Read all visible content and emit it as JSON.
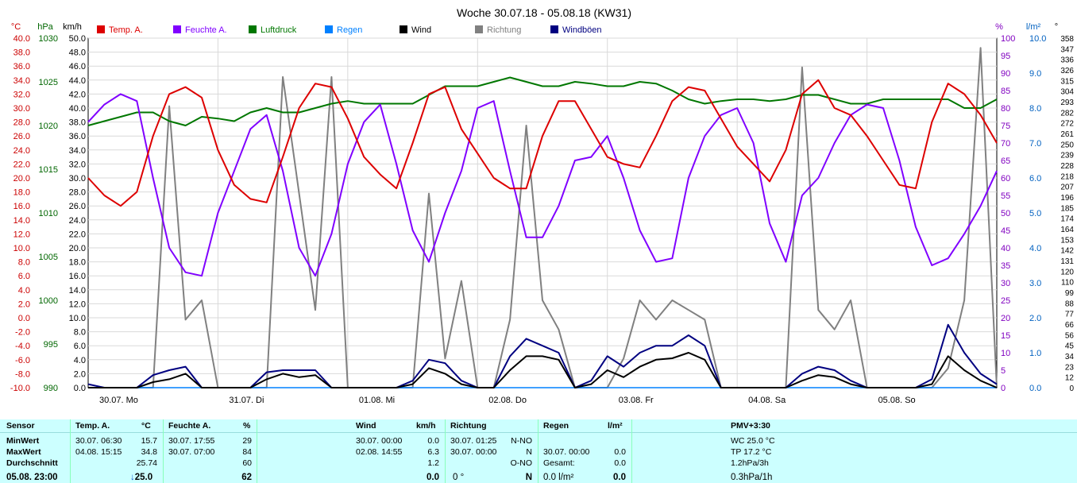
{
  "chart_data": {
    "type": "line",
    "title": "Woche 30.07.18 - 05.08.18 (KW31)",
    "legend": [
      {
        "name": "Temp. A.",
        "color": "#dd0000"
      },
      {
        "name": "Feuchte A.",
        "color": "#8000ff"
      },
      {
        "name": "Luftdruck",
        "color": "#007700"
      },
      {
        "name": "Regen",
        "color": "#0080ff"
      },
      {
        "name": "Wind",
        "color": "#000000"
      },
      {
        "name": "Richtung",
        "color": "#808080"
      },
      {
        "name": "Windböen",
        "color": "#000080"
      }
    ],
    "axes": {
      "temp": {
        "unit": "°C",
        "min": -10,
        "max": 40,
        "step": 2,
        "color": "#cc0000"
      },
      "pressure": {
        "unit": "hPa",
        "min": 990,
        "max": 1030,
        "step": 5,
        "color": "#006600"
      },
      "wind": {
        "unit": "km/h",
        "min": 0,
        "max": 50,
        "step": 2,
        "color": "#000000"
      },
      "humidity": {
        "unit": "%",
        "min": 0,
        "max": 100,
        "step": 5,
        "color": "#8000c0"
      },
      "rain": {
        "unit": "l/m²",
        "min": 0,
        "max": 10,
        "step": 1,
        "color": "#0060c0"
      },
      "direction": {
        "unit": "°",
        "ticks": [
          "0",
          "12",
          "23",
          "34",
          "45",
          "56",
          "66",
          "77",
          "88",
          "99",
          "110",
          "120",
          "131",
          "142",
          "153",
          "164",
          "174",
          "185",
          "196",
          "207",
          "218",
          "228",
          "239",
          "250",
          "261",
          "272",
          "282",
          "293",
          "304",
          "315",
          "326",
          "336",
          "347",
          "358"
        ],
        "color": "#000000"
      }
    },
    "x": {
      "unit": "hours since 30.07. 00:00",
      "min": 0,
      "max": 168,
      "day_labels": [
        "30.07.  Mo",
        "31.07.  Di",
        "01.08.  Mi",
        "02.08.  Do",
        "03.08.  Fr",
        "04.08.  Sa",
        "05.08.  So"
      ]
    },
    "series": [
      {
        "name": "Temp. A.",
        "axis": "temp",
        "x": [
          0,
          3,
          6,
          9,
          12,
          15,
          18,
          21,
          24,
          27,
          30,
          33,
          36,
          39,
          42,
          45,
          48,
          51,
          54,
          57,
          60,
          63,
          66,
          69,
          72,
          75,
          78,
          81,
          84,
          87,
          90,
          93,
          96,
          99,
          102,
          105,
          108,
          111,
          114,
          117,
          120,
          123,
          126,
          129,
          132,
          135,
          138,
          141,
          144,
          147,
          150,
          153,
          156,
          159,
          162,
          165,
          168
        ],
        "values": [
          20,
          17.5,
          16,
          18,
          26,
          32,
          33,
          31.5,
          24,
          19,
          17,
          16.5,
          23,
          30,
          33.5,
          33,
          28.5,
          23,
          20.5,
          18.5,
          25,
          32,
          33,
          27,
          23.5,
          20,
          18.5,
          18.5,
          26,
          31,
          31,
          27,
          23,
          22,
          21.5,
          26,
          31,
          33,
          32.5,
          28.5,
          24.5,
          22,
          19.5,
          24,
          32,
          34,
          30,
          29,
          26,
          22.5,
          19,
          18.5,
          28,
          33.5,
          32,
          29,
          25
        ]
      },
      {
        "name": "Feuchte A.",
        "axis": "humidity",
        "x": [
          0,
          3,
          6,
          9,
          12,
          15,
          18,
          21,
          24,
          27,
          30,
          33,
          36,
          39,
          42,
          45,
          48,
          51,
          54,
          57,
          60,
          63,
          66,
          69,
          72,
          75,
          78,
          81,
          84,
          87,
          90,
          93,
          96,
          99,
          102,
          105,
          108,
          111,
          114,
          117,
          120,
          123,
          126,
          129,
          132,
          135,
          138,
          141,
          144,
          147,
          150,
          153,
          156,
          159,
          162,
          165,
          168
        ],
        "values": [
          76,
          81,
          84,
          82,
          60,
          40,
          33,
          32,
          50,
          62,
          74,
          78,
          62,
          40,
          32,
          44,
          64,
          76,
          81,
          64,
          45,
          36,
          50,
          62,
          80,
          82,
          62,
          43,
          43,
          52,
          65,
          66,
          72,
          60,
          45,
          36,
          37,
          60,
          72,
          78,
          80,
          70,
          47,
          36,
          55,
          60,
          70,
          78,
          81,
          80,
          65,
          46,
          35,
          37,
          44,
          52,
          62
        ]
      },
      {
        "name": "Luftdruck",
        "axis": "pressure",
        "x": [
          0,
          3,
          6,
          9,
          12,
          15,
          18,
          21,
          24,
          27,
          30,
          33,
          36,
          39,
          42,
          45,
          48,
          51,
          54,
          57,
          60,
          63,
          66,
          69,
          72,
          75,
          78,
          81,
          84,
          87,
          90,
          93,
          96,
          99,
          102,
          105,
          108,
          111,
          114,
          117,
          120,
          123,
          126,
          129,
          132,
          135,
          138,
          141,
          144,
          147,
          150,
          153,
          156,
          159,
          162,
          165,
          168
        ],
        "values": [
          1020,
          1020.5,
          1021,
          1021.5,
          1021.5,
          1020.5,
          1020,
          1021,
          1020.8,
          1020.5,
          1021.5,
          1022,
          1021.5,
          1021.5,
          1022,
          1022.5,
          1022.8,
          1022.5,
          1022.5,
          1022.5,
          1022.5,
          1023.5,
          1024.5,
          1024.5,
          1024.5,
          1025,
          1025.5,
          1025,
          1024.5,
          1024.5,
          1025,
          1024.8,
          1024.5,
          1024.5,
          1025,
          1024.8,
          1024,
          1023,
          1022.5,
          1022.8,
          1023,
          1023,
          1022.8,
          1023,
          1023.5,
          1023.5,
          1023,
          1022.5,
          1022.5,
          1023,
          1023,
          1023,
          1023,
          1023,
          1022,
          1022,
          1023
        ]
      },
      {
        "name": "Wind",
        "axis": "wind",
        "x": [
          0,
          3,
          6,
          9,
          12,
          15,
          18,
          21,
          24,
          27,
          30,
          33,
          36,
          39,
          42,
          45,
          48,
          51,
          54,
          57,
          60,
          63,
          66,
          69,
          72,
          75,
          78,
          81,
          84,
          87,
          90,
          93,
          96,
          99,
          102,
          105,
          108,
          111,
          114,
          117,
          120,
          123,
          126,
          129,
          132,
          135,
          138,
          141,
          144,
          147,
          150,
          153,
          156,
          159,
          162,
          165,
          168
        ],
        "values": [
          0,
          0,
          0,
          0,
          0.8,
          1.2,
          2,
          0,
          0,
          0,
          0,
          1.2,
          2,
          1.5,
          1.8,
          0,
          0,
          0,
          0,
          0,
          0.5,
          2.8,
          2,
          0.5,
          0,
          0,
          2.5,
          4.5,
          4.5,
          4,
          0,
          0.5,
          2.5,
          1.5,
          3,
          4,
          4.2,
          5,
          4,
          0,
          0,
          0,
          0,
          0,
          1,
          1.8,
          1.5,
          0.5,
          0,
          0,
          0,
          0,
          0.5,
          4.5,
          2.5,
          1,
          0
        ]
      },
      {
        "name": "Windböen",
        "axis": "wind",
        "x": [
          0,
          3,
          6,
          9,
          12,
          15,
          18,
          21,
          24,
          27,
          30,
          33,
          36,
          39,
          42,
          45,
          48,
          51,
          54,
          57,
          60,
          63,
          66,
          69,
          72,
          75,
          78,
          81,
          84,
          87,
          90,
          93,
          96,
          99,
          102,
          105,
          108,
          111,
          114,
          117,
          120,
          123,
          126,
          129,
          132,
          135,
          138,
          141,
          144,
          147,
          150,
          153,
          156,
          159,
          162,
          165,
          168
        ],
        "values": [
          0.5,
          0,
          0,
          0,
          1.8,
          2.5,
          3,
          0,
          0,
          0,
          0,
          2.2,
          2.5,
          2.5,
          2.5,
          0,
          0,
          0,
          0,
          0,
          1,
          4,
          3.5,
          1,
          0,
          0,
          4.5,
          7,
          6,
          5,
          0,
          1,
          4.5,
          3,
          5,
          6,
          6,
          7.5,
          6,
          0,
          0,
          0,
          0,
          0,
          2,
          3,
          2.5,
          1,
          0,
          0,
          0,
          0,
          1.2,
          9,
          5,
          2,
          0.5
        ]
      },
      {
        "name": "Richtung",
        "axis": "direction",
        "x": [
          0,
          3,
          6,
          9,
          12,
          15,
          18,
          21,
          24,
          27,
          30,
          33,
          36,
          39,
          42,
          45,
          48,
          51,
          54,
          57,
          60,
          63,
          66,
          69,
          72,
          75,
          78,
          81,
          84,
          87,
          90,
          93,
          96,
          99,
          102,
          105,
          108,
          111,
          114,
          117,
          120,
          123,
          126,
          129,
          132,
          135,
          138,
          141,
          144,
          147,
          150,
          153,
          156,
          159,
          162,
          165,
          168
        ],
        "values": [
          0,
          0,
          0,
          0,
          0,
          290,
          70,
          90,
          0,
          0,
          0,
          0,
          320,
          200,
          80,
          320,
          0,
          0,
          0,
          0,
          0,
          200,
          30,
          110,
          0,
          0,
          70,
          270,
          90,
          60,
          0,
          0,
          0,
          30,
          90,
          70,
          90,
          80,
          70,
          0,
          0,
          0,
          0,
          0,
          330,
          80,
          60,
          90,
          0,
          0,
          0,
          0,
          0,
          20,
          90,
          350,
          0
        ]
      },
      {
        "name": "Regen",
        "axis": "rain",
        "x": [
          0,
          168
        ],
        "values": [
          0,
          0
        ]
      }
    ]
  },
  "stats": {
    "headers": {
      "sensor": "Sensor",
      "temp": "Temp. A.",
      "temp_unit": "°C",
      "hum": "Feuchte A.",
      "hum_unit": "%",
      "wind": "Wind",
      "wind_unit": "km/h",
      "dir": "Richtung",
      "rain": "Regen",
      "rain_unit": "l/m²",
      "pmv": "PMV+3:30"
    },
    "row_labels": [
      "MinWert",
      "MaxWert",
      "Durchschnitt",
      "05.08. 23:00"
    ],
    "temp": {
      "min_time": "30.07.  06:30",
      "min_val": "15.7",
      "max_time": "04.08.  15:15",
      "max_val": "34.8",
      "avg": "25.74",
      "current": "25.0"
    },
    "hum": {
      "min_time": "30.07.  17:55",
      "min_val": "29",
      "max_time": "30.07.  07:00",
      "max_val": "84",
      "avg": "60",
      "current": "62"
    },
    "wind": {
      "min_time": "30.07.  00:00",
      "min_val": "0.0",
      "max_time": "02.08.  14:55",
      "max_val": "6.3",
      "avg": "1.2",
      "current": "0.0"
    },
    "dir": {
      "min_time": "30.07.  01:25",
      "min_val": "N-NO",
      "max_time": "30.07.  00:00",
      "max_val": "N",
      "avg": "O-NO",
      "current_deg": "0 °",
      "current": "N"
    },
    "rain": {
      "max_time": "30.07.  00:00",
      "max_val": "0.0",
      "total_label": "Gesamt:",
      "total_val": "0.0",
      "current_l": "0.0 l/m²",
      "current": "0.0"
    },
    "pmv": {
      "wc": "WC 25.0 °C",
      "tp": "TP 17.2 °C",
      "p3h": "1.2hPa/3h",
      "p1h": "0.3hPa/1h"
    },
    "trend_arrow": "↓"
  }
}
